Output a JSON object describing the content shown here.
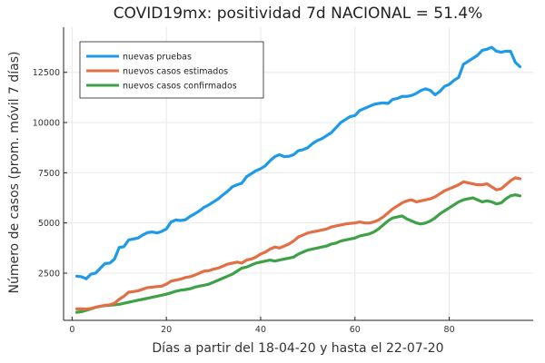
{
  "chart_data": {
    "type": "line",
    "title": "COVID19mx: positividad 7d NACIONAL = 51.4%",
    "xlabel": "Días a partir del 18-04-20 y hasta el 22-07-20",
    "ylabel": "Número de casos (prom. móvil 7 días)",
    "xlim": [
      -1.8,
      97.8
    ],
    "ylim": [
      149,
      14747
    ],
    "xticks": [
      0,
      20,
      40,
      60,
      80
    ],
    "yticks": [
      2500,
      5000,
      7500,
      10000,
      12500
    ],
    "ytick_labels": [
      "2500",
      "5000",
      "7500",
      "10000",
      "12500"
    ],
    "grid": true,
    "legend_position": "top-left",
    "x": [
      1,
      2,
      3,
      4,
      5,
      6,
      7,
      8,
      9,
      10,
      11,
      12,
      13,
      14,
      15,
      16,
      17,
      18,
      19,
      20,
      21,
      22,
      23,
      24,
      25,
      26,
      27,
      28,
      29,
      30,
      31,
      32,
      33,
      34,
      35,
      36,
      37,
      38,
      39,
      40,
      41,
      42,
      43,
      44,
      45,
      46,
      47,
      48,
      49,
      50,
      51,
      52,
      53,
      54,
      55,
      56,
      57,
      58,
      59,
      60,
      61,
      62,
      63,
      64,
      65,
      66,
      67,
      68,
      69,
      70,
      71,
      72,
      73,
      74,
      75,
      76,
      77,
      78,
      79,
      80,
      81,
      82,
      83,
      84,
      85,
      86,
      87,
      88,
      89,
      90,
      91,
      92,
      93,
      94,
      95
    ],
    "series": [
      {
        "name": "nuevas pruebas",
        "color": "#1f9ae9",
        "values": [
          2350,
          2320,
          2220,
          2450,
          2500,
          2750,
          2980,
          3000,
          3200,
          3780,
          3820,
          4150,
          4200,
          4250,
          4400,
          4520,
          4550,
          4500,
          4580,
          4700,
          5050,
          5150,
          5120,
          5150,
          5320,
          5450,
          5600,
          5780,
          5900,
          6050,
          6200,
          6400,
          6580,
          6800,
          6900,
          6980,
          7300,
          7450,
          7600,
          7700,
          7850,
          8100,
          8300,
          8400,
          8300,
          8320,
          8400,
          8600,
          8650,
          8750,
          8950,
          9100,
          9200,
          9350,
          9500,
          9750,
          10000,
          10150,
          10300,
          10350,
          10600,
          10700,
          10800,
          10900,
          10950,
          10980,
          10950,
          11150,
          11200,
          11300,
          11300,
          11350,
          11450,
          11600,
          11680,
          11600,
          11380,
          11550,
          11800,
          11900,
          12100,
          12250,
          12900,
          13050,
          13200,
          13350,
          13600,
          13650,
          13750,
          13550,
          13500,
          13550,
          13550,
          13000,
          12780
        ]
      },
      {
        "name": "nuevos casos estimados",
        "color": "#e26f46",
        "values": [
          720,
          720,
          710,
          740,
          800,
          850,
          900,
          920,
          1000,
          1200,
          1350,
          1550,
          1580,
          1620,
          1700,
          1780,
          1800,
          1830,
          1850,
          1950,
          2100,
          2150,
          2200,
          2280,
          2320,
          2400,
          2500,
          2600,
          2620,
          2700,
          2750,
          2850,
          2950,
          3000,
          3050,
          3000,
          3150,
          3200,
          3300,
          3450,
          3550,
          3700,
          3800,
          3750,
          3850,
          3950,
          4100,
          4300,
          4400,
          4500,
          4550,
          4600,
          4650,
          4700,
          4800,
          4850,
          4900,
          4950,
          4980,
          5000,
          5050,
          5000,
          5000,
          5050,
          5150,
          5300,
          5500,
          5700,
          5850,
          6000,
          6100,
          6150,
          6050,
          6100,
          6150,
          6200,
          6300,
          6450,
          6600,
          6700,
          6800,
          6900,
          7050,
          7000,
          6950,
          6900,
          6900,
          6950,
          6800,
          6650,
          6700,
          6900,
          7100,
          7250,
          7200
        ]
      },
      {
        "name": "nuevos casos confirmados",
        "color": "#3ea147",
        "values": [
          550,
          580,
          650,
          720,
          800,
          850,
          880,
          900,
          920,
          950,
          1000,
          1050,
          1100,
          1150,
          1200,
          1250,
          1300,
          1350,
          1400,
          1450,
          1520,
          1600,
          1650,
          1680,
          1720,
          1800,
          1850,
          1900,
          1950,
          2050,
          2150,
          2250,
          2350,
          2450,
          2600,
          2750,
          2800,
          2900,
          3000,
          3050,
          3100,
          3150,
          3100,
          3150,
          3200,
          3250,
          3300,
          3450,
          3550,
          3650,
          3700,
          3750,
          3800,
          3850,
          3950,
          4000,
          4100,
          4150,
          4200,
          4250,
          4350,
          4400,
          4450,
          4550,
          4700,
          4900,
          5100,
          5250,
          5300,
          5350,
          5200,
          5100,
          5000,
          4950,
          5000,
          5100,
          5250,
          5450,
          5600,
          5750,
          5900,
          6050,
          6150,
          6200,
          6250,
          6150,
          6050,
          6100,
          6050,
          5950,
          6000,
          6200,
          6350,
          6400,
          6350
        ]
      }
    ]
  }
}
